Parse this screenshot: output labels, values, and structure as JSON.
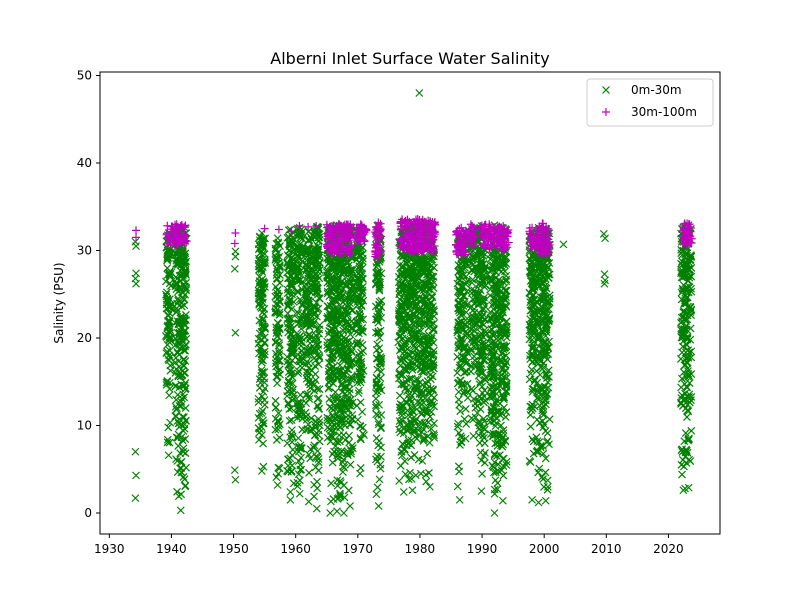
{
  "chart_data": {
    "type": "scatter",
    "title": "Alberni Inlet Surface Water Salinity",
    "xlabel": "",
    "ylabel": "Salinity (PSU)",
    "xlim": [
      1928.5,
      2028.3
    ],
    "ylim": [
      -2.4,
      50.4
    ],
    "xticks": [
      1930,
      1940,
      1950,
      1960,
      1970,
      1980,
      1990,
      2000,
      2010,
      2020
    ],
    "yticks": [
      0,
      10,
      20,
      30,
      40,
      50
    ],
    "grid": false,
    "legend_position": "top-right",
    "series": [
      {
        "name": "0m-30m",
        "marker": "x",
        "color": "#008000",
        "points": [
          [
            1934.2,
            31.0
          ],
          [
            1934.3,
            30.5
          ],
          [
            1934.3,
            27.4
          ],
          [
            1934.2,
            26.8
          ],
          [
            1934.3,
            26.2
          ],
          [
            1934.2,
            7.0
          ],
          [
            1934.3,
            4.3
          ],
          [
            1934.2,
            1.7
          ],
          [
            1950.3,
            29.9
          ],
          [
            1950.3,
            29.3
          ],
          [
            1950.2,
            27.9
          ],
          [
            1950.3,
            20.6
          ],
          [
            1950.2,
            4.9
          ],
          [
            1950.3,
            3.8
          ],
          [
            1979.9,
            48.0
          ],
          [
            2003.1,
            30.7
          ],
          [
            2009.6,
            31.9
          ],
          [
            2009.8,
            31.4
          ],
          [
            2009.7,
            27.3
          ],
          [
            2009.8,
            26.6
          ],
          [
            2009.7,
            26.2
          ],
          [
            1976.5,
            19.5
          ],
          [
            1971.0,
            8.9
          ]
        ],
        "vertical_spans": [
          [
            1939.1,
            1940.0,
            6.6,
            32.0
          ],
          [
            1940.6,
            1942.4,
            0.3,
            32.6
          ],
          [
            1954.0,
            1955.1,
            4.8,
            32.0
          ],
          [
            1956.7,
            1957.5,
            3.2,
            31.4
          ],
          [
            1958.6,
            1959.7,
            1.5,
            32.4
          ],
          [
            1960.2,
            1961.1,
            2.2,
            32.6
          ],
          [
            1961.6,
            1962.6,
            1.3,
            32.2
          ],
          [
            1962.9,
            1963.9,
            0.5,
            32.7
          ],
          [
            1965.0,
            1966.1,
            0.0,
            32.7
          ],
          [
            1966.1,
            1967.2,
            0.2,
            32.9
          ],
          [
            1967.2,
            1968.3,
            0.0,
            32.8
          ],
          [
            1968.3,
            1969.2,
            0.8,
            32.7
          ],
          [
            1969.8,
            1970.9,
            4.5,
            32.6
          ],
          [
            1972.9,
            1973.8,
            0.8,
            32.9
          ],
          [
            1976.6,
            1978.2,
            2.4,
            32.5
          ],
          [
            1978.2,
            1979.4,
            2.6,
            33.0
          ],
          [
            1979.4,
            1980.9,
            4.5,
            33.2
          ],
          [
            1980.9,
            1982.3,
            3.0,
            33.0
          ],
          [
            1986.0,
            1986.8,
            1.5,
            32.0
          ],
          [
            1987.0,
            1987.7,
            8.5,
            32.2
          ],
          [
            1988.2,
            1989.0,
            8.8,
            32.4
          ],
          [
            1989.2,
            1990.6,
            2.5,
            32.8
          ],
          [
            1991.3,
            1992.7,
            0.0,
            32.9
          ],
          [
            1992.7,
            1994.0,
            1.4,
            32.6
          ],
          [
            1997.6,
            1998.5,
            1.5,
            32.2
          ],
          [
            1998.7,
            1999.5,
            1.2,
            32.6
          ],
          [
            1999.6,
            2000.9,
            1.4,
            32.5
          ],
          [
            2022.0,
            2022.8,
            2.6,
            32.6
          ],
          [
            2022.8,
            2023.7,
            2.9,
            32.9
          ]
        ]
      },
      {
        "name": "30m-100m",
        "marker": "+",
        "color": "#bf00bf",
        "points": [
          [
            1934.3,
            32.3
          ],
          [
            1934.3,
            31.5
          ],
          [
            1950.3,
            32.0
          ],
          [
            1950.2,
            30.8
          ],
          [
            1955.0,
            32.5
          ],
          [
            1957.3,
            32.4
          ],
          [
            1959.3,
            32.2
          ],
          [
            1960.6,
            32.8
          ],
          [
            1962.0,
            32.7
          ],
          [
            1963.3,
            32.8
          ],
          [
            1988.2,
            33.0
          ],
          [
            1989.7,
            32.8
          ]
        ],
        "vertical_spans": [
          [
            1939.2,
            1942.5,
            30.6,
            33.0
          ],
          [
            1965.0,
            1969.0,
            29.6,
            33.0
          ],
          [
            1969.5,
            1971.5,
            31.0,
            33.0
          ],
          [
            1972.8,
            1973.8,
            29.2,
            33.2
          ],
          [
            1976.8,
            1982.5,
            29.8,
            33.6
          ],
          [
            1985.8,
            1987.5,
            29.5,
            32.6
          ],
          [
            1987.8,
            1989.0,
            30.5,
            32.8
          ],
          [
            1989.8,
            1992.5,
            30.2,
            33.0
          ],
          [
            1992.5,
            1994.3,
            30.0,
            32.8
          ],
          [
            1997.6,
            1998.5,
            30.2,
            32.6
          ],
          [
            1998.7,
            2000.9,
            29.6,
            33.1
          ],
          [
            2022.2,
            2023.8,
            30.6,
            33.1
          ]
        ]
      }
    ]
  }
}
